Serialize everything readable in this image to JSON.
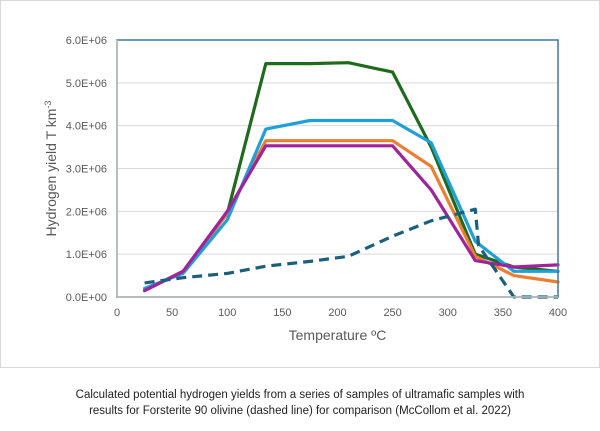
{
  "chart_data": {
    "type": "line",
    "title": "",
    "xlabel": "Temperature ºC",
    "ylabel": "Hydrogen yield T km",
    "ylabel_superscript": "-3",
    "xlim": [
      0,
      400
    ],
    "ylim": [
      0,
      6000000
    ],
    "xticks": [
      "0",
      "50",
      "100",
      "150",
      "200",
      "250",
      "300",
      "350",
      "400"
    ],
    "xtick_values": [
      0,
      50,
      100,
      150,
      200,
      250,
      300,
      350,
      400
    ],
    "yticks": [
      "0.0E+00",
      "1.0E+06",
      "2.0E+06",
      "3.0E+06",
      "4.0E+06",
      "5.0E+06",
      "6.0E+06"
    ],
    "ytick_values": [
      0,
      1000000,
      2000000,
      3000000,
      4000000,
      5000000,
      6000000
    ],
    "grid": true,
    "legend": "none",
    "series": [
      {
        "name": "sample-green",
        "color": "#1e6b1e",
        "dashed": false,
        "x": [
          25,
          60,
          100,
          135,
          175,
          210,
          250,
          285,
          325,
          360,
          400
        ],
        "y": [
          150000,
          600000,
          1950000,
          5450000,
          5450000,
          5470000,
          5250000,
          3500000,
          1000000,
          700000,
          600000
        ]
      },
      {
        "name": "sample-orange",
        "color": "#ed7d31",
        "dashed": false,
        "x": [
          25,
          60,
          100,
          135,
          175,
          210,
          250,
          285,
          325,
          360,
          400
        ],
        "y": [
          150000,
          600000,
          1950000,
          3650000,
          3650000,
          3650000,
          3650000,
          3050000,
          950000,
          500000,
          350000
        ]
      },
      {
        "name": "sample-blue",
        "color": "#1fa0d8",
        "dashed": false,
        "x": [
          25,
          60,
          100,
          135,
          175,
          210,
          250,
          285,
          325,
          360,
          400
        ],
        "y": [
          200000,
          550000,
          1800000,
          3920000,
          4120000,
          4120000,
          4120000,
          3600000,
          1300000,
          600000,
          600000
        ]
      },
      {
        "name": "sample-purple",
        "color": "#a0239a",
        "dashed": false,
        "x": [
          25,
          60,
          100,
          135,
          175,
          210,
          250,
          285,
          325,
          360,
          400
        ],
        "y": [
          150000,
          600000,
          2000000,
          3530000,
          3530000,
          3530000,
          3530000,
          2500000,
          850000,
          700000,
          750000
        ]
      },
      {
        "name": "Forsterite 90 olivine",
        "color": "#1b5f7f",
        "dashed": true,
        "x": [
          25,
          60,
          100,
          135,
          175,
          210,
          250,
          285,
          325,
          328,
          360,
          400
        ],
        "y": [
          330000,
          450000,
          550000,
          720000,
          830000,
          950000,
          1420000,
          1780000,
          2050000,
          1200000,
          0,
          0
        ]
      }
    ]
  },
  "caption": {
    "line1": "Calculated potential hydrogen yields from a series of samples of ultramafic samples with",
    "line2": "results for Forsterite 90 olivine (dashed line) for comparison (McCollom et al. 2022)"
  }
}
